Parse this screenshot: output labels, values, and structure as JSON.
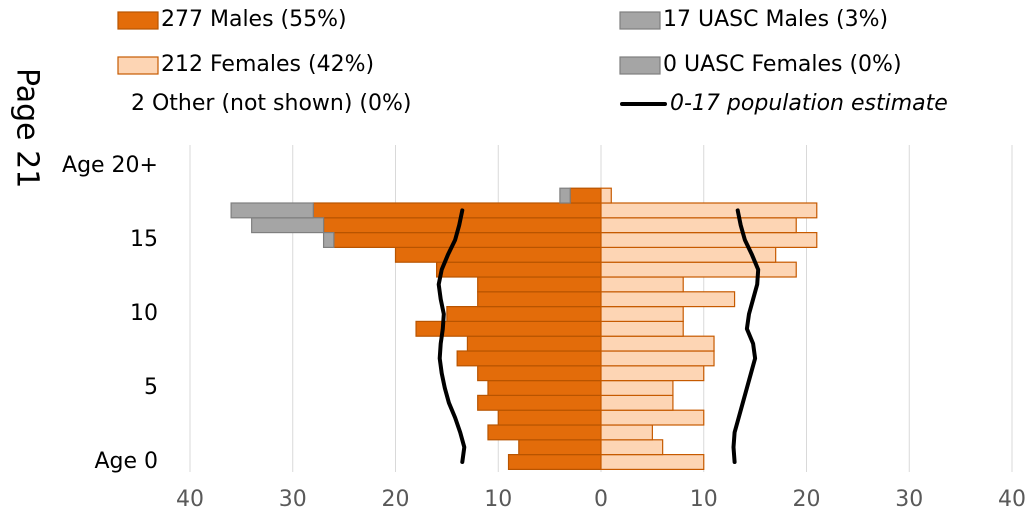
{
  "page_label": "Page 21",
  "chart_data": {
    "type": "population_pyramid",
    "categories": [
      "Age 0",
      null,
      null,
      null,
      null,
      "5",
      null,
      null,
      null,
      null,
      "10",
      null,
      null,
      null,
      null,
      "15",
      null,
      null,
      null,
      null,
      "Age 20+"
    ],
    "series": [
      {
        "name": "277 Males (55%)",
        "color": "#e36c0a",
        "stroke": "#b85400",
        "side": "left",
        "values": [
          9,
          8,
          11,
          10,
          12,
          11,
          12,
          14,
          13,
          18,
          15,
          12,
          12,
          16,
          20,
          26,
          27,
          28,
          3,
          0,
          0
        ]
      },
      {
        "name": "212 Females (42%)",
        "color": "#fdd5b4",
        "stroke": "#c65a00",
        "side": "right",
        "values": [
          10,
          6,
          5,
          10,
          7,
          7,
          10,
          11,
          11,
          8,
          8,
          13,
          8,
          19,
          17,
          21,
          19,
          21,
          1,
          0,
          0
        ]
      },
      {
        "name": "17 UASC Males (3%)",
        "color": "#a5a5a5",
        "stroke": "#7f7f7f",
        "side": "left",
        "values": [
          0,
          0,
          0,
          0,
          0,
          0,
          0,
          0,
          0,
          0,
          0,
          0,
          0,
          0,
          0,
          1,
          7,
          8,
          1,
          0,
          0
        ]
      },
      {
        "name": "0 UASC Females (0%)",
        "color": "#a5a5a5",
        "stroke": "#7f7f7f",
        "side": "right",
        "values": [
          0,
          0,
          0,
          0,
          0,
          0,
          0,
          0,
          0,
          0,
          0,
          0,
          0,
          0,
          0,
          0,
          0,
          0,
          0,
          0,
          0
        ]
      }
    ],
    "other_note": "2 Other (not shown) (0%)",
    "estimate": {
      "name": "0-17 population estimate",
      "color": "#000000",
      "left_values": [
        13.5,
        13.3,
        13.7,
        14.2,
        14.8,
        15.2,
        15.5,
        15.7,
        15.6,
        15.4,
        15.3,
        15.6,
        15.8,
        15.5,
        14.9,
        14.2,
        13.8,
        13.5,
        null,
        null,
        null
      ],
      "right_values": [
        13.0,
        12.9,
        13.0,
        13.4,
        13.8,
        14.2,
        14.6,
        15.0,
        14.8,
        14.2,
        14.4,
        14.8,
        15.2,
        15.3,
        14.7,
        14.0,
        13.6,
        13.3,
        null,
        null,
        null
      ]
    },
    "xlim": [
      -40,
      40
    ],
    "xticks": [
      {
        "value": -40,
        "label": "40"
      },
      {
        "value": -30,
        "label": "30"
      },
      {
        "value": -20,
        "label": "20"
      },
      {
        "value": -10,
        "label": "10"
      },
      0,
      10,
      20,
      30,
      40
    ],
    "grid": true
  }
}
